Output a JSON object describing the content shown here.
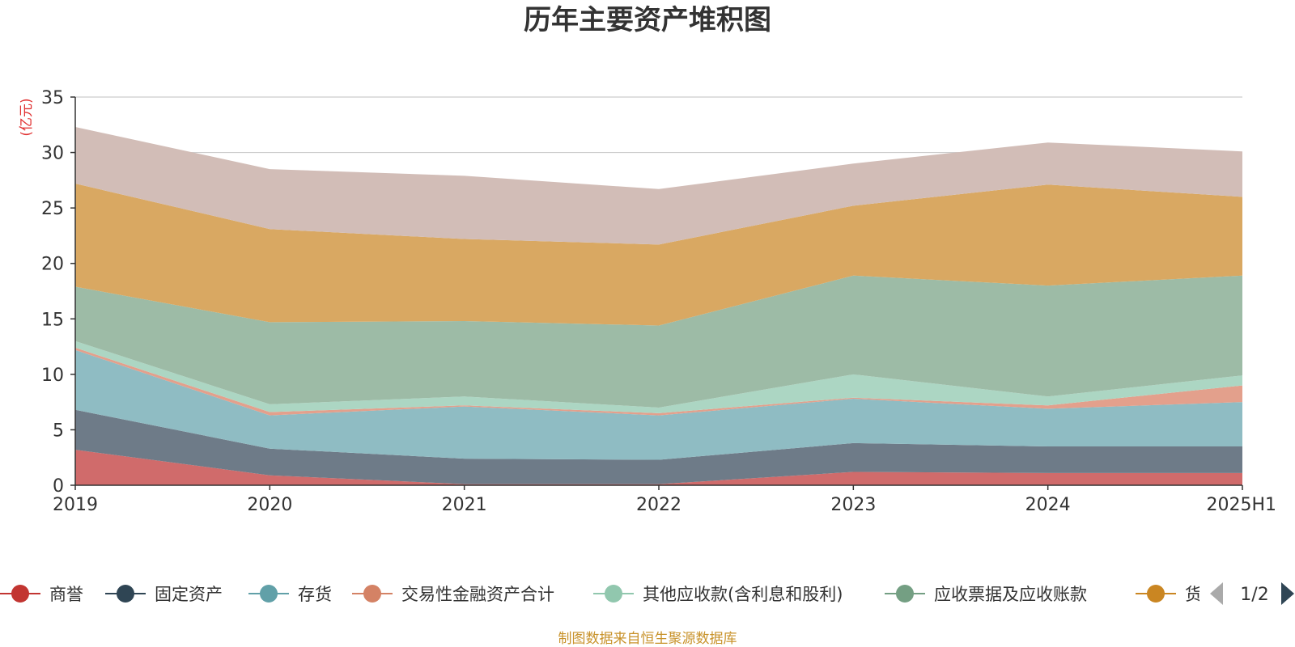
{
  "chart_data": {
    "type": "area",
    "stacked": true,
    "title": "历年主要资产堆积图",
    "ylabel": "(亿元)",
    "xlabel": "",
    "ylim": [
      0,
      35
    ],
    "yticks": [
      0,
      5,
      10,
      15,
      20,
      25,
      30,
      35
    ],
    "grid": true,
    "legend_position": "bottom",
    "categories": [
      "2019",
      "2020",
      "2021",
      "2022",
      "2023",
      "2024",
      "2025H1"
    ],
    "series": [
      {
        "name": "商誉",
        "color": "#d06b6b",
        "values": [
          3.2,
          0.9,
          0.1,
          0.1,
          1.2,
          1.1,
          1.1
        ]
      },
      {
        "name": "固定资产",
        "color": "#6e7b88",
        "values": [
          3.6,
          2.4,
          2.3,
          2.2,
          2.6,
          2.4,
          2.4
        ]
      },
      {
        "name": "存货",
        "color": "#8fbcc3",
        "values": [
          5.4,
          3.0,
          4.7,
          4.0,
          4.0,
          3.4,
          4.0
        ]
      },
      {
        "name": "交易性金融资产合计",
        "color": "#e3a08c",
        "values": [
          0.2,
          0.3,
          0.1,
          0.2,
          0.1,
          0.3,
          1.5
        ]
      },
      {
        "name": "其他应收款(含利息和股利)",
        "color": "#acd6c3",
        "values": [
          0.6,
          0.7,
          0.8,
          0.5,
          2.1,
          0.8,
          0.9
        ]
      },
      {
        "name": "应收票据及应收账款",
        "color": "#9dbba6",
        "values": [
          4.9,
          7.4,
          6.8,
          7.4,
          8.9,
          10.0,
          9.0
        ]
      },
      {
        "name": "货币资金",
        "color": "#d9a862",
        "values": [
          9.3,
          8.4,
          7.4,
          7.3,
          6.3,
          9.1,
          7.1
        ]
      },
      {
        "name": "",
        "color": "#d2bdb7",
        "values": [
          5.1,
          5.4,
          5.7,
          5.0,
          3.8,
          3.8,
          4.1
        ]
      }
    ]
  },
  "legend": {
    "items": [
      {
        "label": "商誉",
        "color": "#c23531"
      },
      {
        "label": "固定资产",
        "color": "#2f4554"
      },
      {
        "label": "存货",
        "color": "#61a0a8"
      },
      {
        "label": "交易性金融资产合计",
        "color": "#d48265"
      },
      {
        "label": "其他应收款(含利息和股利)",
        "color": "#91c7ae"
      },
      {
        "label": "应收票据及应收账款",
        "color": "#749f83"
      },
      {
        "label": "货币资金",
        "color": "#ca8622"
      }
    ],
    "page_indicator": "1/2"
  },
  "footer": {
    "source": "制图数据来自恒生聚源数据库"
  }
}
